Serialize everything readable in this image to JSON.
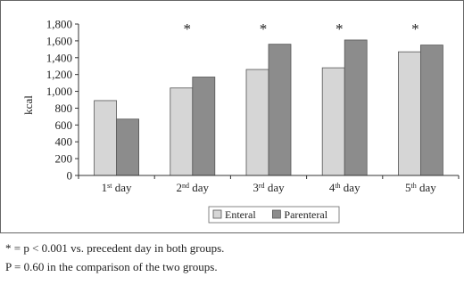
{
  "chart_data": {
    "type": "bar",
    "ylabel": "kcal",
    "ylim": [
      0,
      1800
    ],
    "ytick_step": 200,
    "grid": false,
    "legend_position": "bottom-center",
    "categories": [
      {
        "base": "1",
        "sup": "st",
        "rest": " day"
      },
      {
        "base": "2",
        "sup": "nd",
        "rest": " day"
      },
      {
        "base": "3",
        "sup": "rd",
        "rest": " day"
      },
      {
        "base": "4",
        "sup": "th",
        "rest": " day"
      },
      {
        "base": "5",
        "sup": "th",
        "rest": " day"
      }
    ],
    "series": [
      {
        "name": "Enteral",
        "color": "#d6d6d6",
        "values": [
          890,
          1040,
          1260,
          1280,
          1470
        ]
      },
      {
        "name": "Parenteral",
        "color": "#8c8c8c",
        "values": [
          670,
          1170,
          1560,
          1610,
          1550
        ]
      }
    ],
    "annotations": [
      "",
      "*",
      "*",
      "*",
      "*"
    ]
  },
  "footnotes": {
    "line1": "* = p < 0.001 vs. precedent day in both groups.",
    "line2": "P = 0.60 in the comparison of the two groups."
  }
}
